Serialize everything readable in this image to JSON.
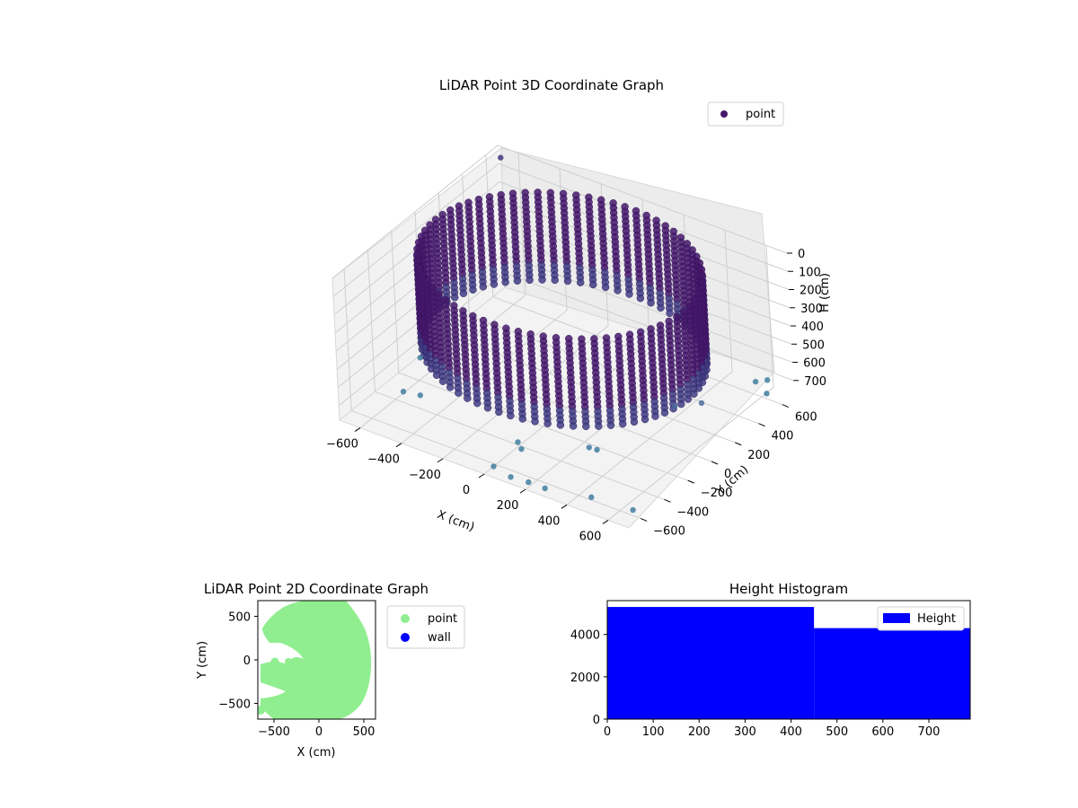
{
  "chart_data": [
    {
      "type": "scatter",
      "projection": "3d",
      "title": "LiDAR Point 3D Coordinate Graph",
      "xlabel": "X (cm)",
      "ylabel": "Y (cm)",
      "zlabel": "H (cm)",
      "xlim": [
        -700,
        700
      ],
      "ylim": [
        -700,
        700
      ],
      "zlim": [
        0,
        780
      ],
      "z_inverted": true,
      "x_ticks": [
        "−600",
        "−400",
        "−200",
        "0",
        "200",
        "400",
        "600"
      ],
      "y_ticks": [
        "−600",
        "−400",
        "−200",
        "0",
        "200",
        "400",
        "600"
      ],
      "z_ticks": [
        "0",
        "100",
        "200",
        "300",
        "400",
        "500",
        "600",
        "700"
      ],
      "legend": {
        "entries": [
          "point"
        ],
        "position": "upper right"
      },
      "colormap": "viridis",
      "series": [
        {
          "name": "point",
          "description_points": "cylindrical wall of points, radius approx 580-620 cm, heights 0 to approx 480 cm",
          "wall_radius": 600,
          "wall_height_min": 0,
          "wall_height_max": 480,
          "outliers": [
            {
              "x": -640,
              "y": 620,
              "h": 0
            },
            {
              "x": 620,
              "y": 620,
              "h": 690
            },
            {
              "x": 580,
              "y": 590,
              "h": 700
            },
            {
              "x": 650,
              "y": 560,
              "h": 720
            },
            {
              "x": -620,
              "y": -150,
              "h": 690
            },
            {
              "x": -560,
              "y": -400,
              "h": 720
            },
            {
              "x": -520,
              "y": -330,
              "h": 760
            },
            {
              "x": -20,
              "y": -380,
              "h": 780
            },
            {
              "x": 20,
              "y": -420,
              "h": 780
            },
            {
              "x": 300,
              "y": -330,
              "h": 700
            },
            {
              "x": 320,
              "y": -300,
              "h": 720
            },
            {
              "x": 0,
              "y": -620,
              "h": 780
            },
            {
              "x": 100,
              "y": -650,
              "h": 780
            },
            {
              "x": 180,
              "y": -640,
              "h": 780
            },
            {
              "x": 260,
              "y": -640,
              "h": 780
            },
            {
              "x": 450,
              "y": -580,
              "h": 780
            },
            {
              "x": 640,
              "y": -560,
              "h": 780
            },
            {
              "x": 460,
              "y": 120,
              "h": 640
            },
            {
              "x": 520,
              "y": 240,
              "h": 660
            }
          ]
        }
      ]
    },
    {
      "type": "scatter",
      "title": "LiDAR Point 2D Coordinate Graph",
      "xlabel": "X (cm)",
      "ylabel": "Y (cm)",
      "xlim": [
        -680,
        630
      ],
      "ylim": [
        -680,
        680
      ],
      "x_ticks": [
        "−500",
        "0",
        "500"
      ],
      "y_ticks": [
        "500",
        "0",
        "−500"
      ],
      "legend": {
        "entries": [
          "point",
          "wall"
        ],
        "position": "outside right"
      },
      "series": [
        {
          "name": "point",
          "color": "#90ee90"
        },
        {
          "name": "wall",
          "color": "#0000ff"
        }
      ]
    },
    {
      "type": "bar",
      "title": "Height Histogram",
      "xlim": [
        0,
        790
      ],
      "ylim": [
        0,
        5600
      ],
      "x_ticks": [
        "0",
        "100",
        "200",
        "300",
        "400",
        "500",
        "600",
        "700"
      ],
      "y_ticks": [
        "0",
        "2000",
        "4000"
      ],
      "legend": {
        "entries": [
          "Height"
        ],
        "position": "upper right"
      },
      "series": [
        {
          "name": "Height",
          "color": "#0000ff",
          "bins": [
            {
              "from": 0,
              "to": 450,
              "count": 5300
            },
            {
              "from": 450,
              "to": 790,
              "count": 4300
            }
          ]
        }
      ]
    }
  ]
}
